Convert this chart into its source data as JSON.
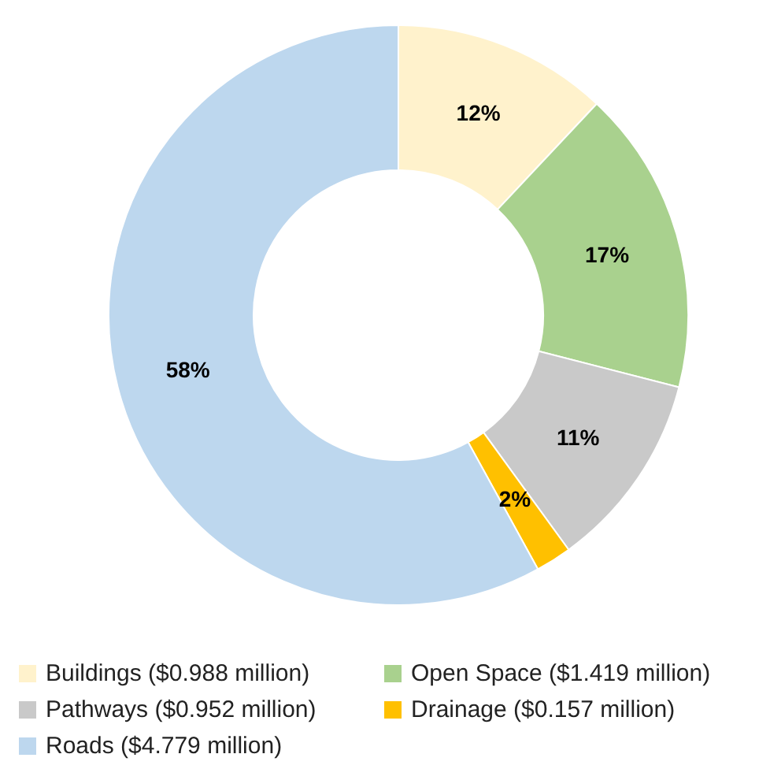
{
  "chart_data": {
    "type": "donut",
    "categories": [
      "Buildings ($0.988 million)",
      "Open Space ($1.419 million)",
      "Pathways ($0.952 million)",
      "Drainage ($0.157 million)",
      "Roads ($4.779 million)"
    ],
    "values": [
      12,
      17,
      11,
      2,
      58
    ],
    "colors": [
      "#fff2cc",
      "#a9d18e",
      "#c9c9c9",
      "#ffc000",
      "#bdd7ee"
    ],
    "value_labels": [
      "12%",
      "17%",
      "11%",
      "2%",
      "58%"
    ],
    "legend": "bottom"
  }
}
